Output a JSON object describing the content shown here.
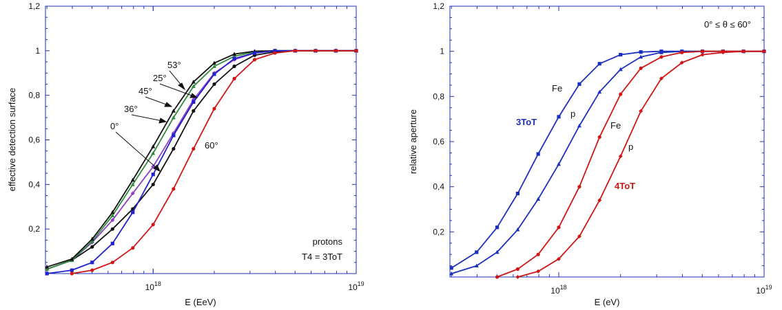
{
  "chart_data": [
    {
      "type": "line",
      "xlabel": "E (EeV)",
      "ylabel": "effective detection surface",
      "x_scale": "log",
      "xlim": [
        2.95e+17,
        1e+19
      ],
      "ylim": [
        0,
        1.2
      ],
      "x_tick_labels": [
        {
          "value": 1e+18,
          "base": "10",
          "exp": "18"
        },
        {
          "value": 1e+19,
          "base": "10",
          "exp": "19"
        }
      ],
      "y_ticks": [
        {
          "value": 0.2,
          "label": "0,2"
        },
        {
          "value": 0.4,
          "label": "0,4"
        },
        {
          "value": 0.6,
          "label": "0,6"
        },
        {
          "value": 0.8,
          "label": "0,8"
        },
        {
          "value": 1.0,
          "label": "1"
        },
        {
          "value": 1.2,
          "label": "1,2"
        }
      ],
      "x": [
        3e+17,
        3.98e+17,
        5.01e+17,
        6.31e+17,
        7.94e+17,
        1e+18,
        1.26e+18,
        1.58e+18,
        2e+18,
        2.51e+18,
        3.16e+18,
        3.98e+18,
        5.01e+18,
        6.31e+18,
        7.94e+18,
        1e+19
      ],
      "series": [
        {
          "name": "0°",
          "color": "#111111",
          "marker": "circle",
          "values": [
            0.02,
            0.06,
            0.12,
            0.2,
            0.29,
            0.4,
            0.56,
            0.73,
            0.85,
            0.93,
            0.98,
            0.995,
            1.0,
            1.0,
            1.0,
            1.0
          ]
        },
        {
          "name": "36°",
          "color": "#8e3fc8",
          "marker": "diamond",
          "values": [
            0.02,
            0.06,
            0.14,
            0.24,
            0.36,
            0.48,
            0.63,
            0.78,
            0.9,
            0.96,
            0.99,
            1.0,
            1.0,
            1.0,
            1.0,
            1.0
          ]
        },
        {
          "name": "45°",
          "color": "#2e8b3a",
          "marker": "triangle",
          "values": [
            0.02,
            0.06,
            0.145,
            0.26,
            0.4,
            0.54,
            0.7,
            0.84,
            0.93,
            0.975,
            0.995,
            1.0,
            1.0,
            1.0,
            1.0,
            1.0
          ]
        },
        {
          "name": "25°",
          "color": "#111111",
          "marker": "triangle",
          "values": [
            0.03,
            0.065,
            0.155,
            0.275,
            0.42,
            0.57,
            0.73,
            0.86,
            0.945,
            0.985,
            0.998,
            1.0,
            1.0,
            1.0,
            1.0,
            1.0
          ]
        },
        {
          "name": "53°",
          "color": "#2222cc",
          "marker": "square",
          "values": [
            0.0,
            0.015,
            0.05,
            0.135,
            0.275,
            0.445,
            0.62,
            0.77,
            0.895,
            0.965,
            0.99,
            1.0,
            1.0,
            1.0,
            1.0,
            1.0
          ]
        },
        {
          "name": "60°",
          "color": "#d01515",
          "marker": "circle",
          "values": [
            null,
            0.0,
            0.015,
            0.05,
            0.115,
            0.22,
            0.38,
            0.56,
            0.74,
            0.875,
            0.96,
            0.99,
            1.0,
            1.0,
            1.0,
            1.0
          ]
        }
      ],
      "annotations": [
        {
          "text": "protons"
        },
        {
          "text": "T4 = 3ToT"
        }
      ]
    },
    {
      "type": "line",
      "xlabel": "E (eV)",
      "ylabel": "relative aperture",
      "x_scale": "log",
      "xlim": [
        2.95e+17,
        1e+19
      ],
      "ylim": [
        0,
        1.2
      ],
      "x_tick_labels": [
        {
          "value": 1e+18,
          "base": "10",
          "exp": "18"
        },
        {
          "value": 1e+19,
          "base": "10",
          "exp": "19"
        }
      ],
      "y_ticks": [
        {
          "value": 0.2,
          "label": "0,2"
        },
        {
          "value": 0.4,
          "label": "0,4"
        },
        {
          "value": 0.6,
          "label": "0,6"
        },
        {
          "value": 0.8,
          "label": "0,8"
        },
        {
          "value": 1.0,
          "label": "1"
        },
        {
          "value": 1.2,
          "label": "1,2"
        }
      ],
      "x": [
        3e+17,
        3.98e+17,
        5.01e+17,
        6.31e+17,
        7.94e+17,
        1e+18,
        1.26e+18,
        1.58e+18,
        2e+18,
        2.51e+18,
        3.16e+18,
        3.98e+18,
        5.01e+18,
        6.31e+18,
        7.94e+18,
        1e+19
      ],
      "series": [
        {
          "name": "Fe",
          "group": "3ToT",
          "color": "#1a2fc0",
          "marker": "square",
          "values": [
            0.04,
            0.11,
            0.22,
            0.37,
            0.545,
            0.71,
            0.855,
            0.945,
            0.985,
            0.997,
            1.0,
            1.0,
            1.0,
            1.0,
            1.0,
            1.0
          ]
        },
        {
          "name": "p",
          "group": "3ToT",
          "color": "#1a2fc0",
          "marker": "triangle",
          "values": [
            0.015,
            0.05,
            0.11,
            0.21,
            0.345,
            0.5,
            0.67,
            0.82,
            0.92,
            0.975,
            0.995,
            1.0,
            1.0,
            1.0,
            1.0,
            1.0
          ]
        },
        {
          "name": "Fe",
          "group": "4ToT",
          "color": "#d01515",
          "marker": "circle",
          "values": [
            null,
            null,
            0.0,
            0.035,
            0.1,
            0.22,
            0.4,
            0.62,
            0.81,
            0.925,
            0.975,
            0.995,
            1.0,
            1.0,
            1.0,
            1.0
          ]
        },
        {
          "name": "p",
          "group": "4ToT",
          "color": "#d01515",
          "marker": "diamond",
          "values": [
            null,
            null,
            null,
            0.0,
            0.025,
            0.08,
            0.18,
            0.34,
            0.535,
            0.735,
            0.88,
            0.95,
            0.985,
            0.995,
            1.0,
            1.0
          ]
        }
      ],
      "annotations": [
        {
          "text": "0° ≤ θ ≤ 60°"
        },
        {
          "text": "3ToT",
          "color": "#1a2fc0"
        },
        {
          "text": "4ToT",
          "color": "#d01515"
        }
      ]
    }
  ]
}
